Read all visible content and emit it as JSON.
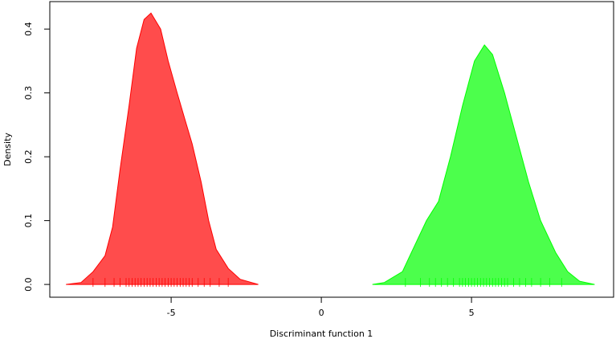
{
  "chart_data": {
    "type": "density",
    "xlabel": "Discriminant function 1",
    "ylabel": "Density",
    "xlim": [
      -9.04,
      9.73
    ],
    "ylim": [
      -0.02,
      0.443
    ],
    "xticks": [
      -5,
      0,
      5
    ],
    "yticks": [
      {
        "value": 0,
        "label": "0.0"
      },
      0.1,
      0.2,
      0.3,
      0.4
    ],
    "series": [
      {
        "color": "#ff0000",
        "x": [
          -8.5,
          -8.0,
          -7.6,
          -7.2,
          -6.95,
          -6.7,
          -6.4,
          -6.15,
          -5.9,
          -5.67,
          -5.35,
          -5.1,
          -4.8,
          -4.55,
          -4.3,
          -4.0,
          -3.75,
          -3.5,
          -3.1,
          -2.7,
          -2.1
        ],
        "values": [
          0,
          0.003,
          0.02,
          0.045,
          0.09,
          0.18,
          0.28,
          0.37,
          0.415,
          0.425,
          0.4,
          0.35,
          0.3,
          0.26,
          0.22,
          0.16,
          0.1,
          0.055,
          0.025,
          0.008,
          0
        ],
        "rug": [
          -7.6,
          -7.2,
          -6.9,
          -6.7,
          -6.5,
          -6.4,
          -6.3,
          -6.2,
          -6.1,
          -6.0,
          -5.9,
          -5.8,
          -5.7,
          -5.6,
          -5.5,
          -5.4,
          -5.3,
          -5.2,
          -5.1,
          -5.0,
          -4.9,
          -4.8,
          -4.7,
          -4.6,
          -4.5,
          -4.4,
          -4.3,
          -4.1,
          -3.9,
          -3.7,
          -3.4,
          -3.1
        ]
      },
      {
        "color": "#00ff00",
        "x": [
          1.7,
          2.1,
          2.7,
          3.1,
          3.5,
          3.9,
          4.3,
          4.7,
          5.1,
          5.43,
          5.7,
          6.1,
          6.5,
          6.9,
          7.3,
          7.8,
          8.2,
          8.6,
          9.1
        ],
        "values": [
          0,
          0.003,
          0.02,
          0.06,
          0.1,
          0.13,
          0.2,
          0.28,
          0.35,
          0.375,
          0.36,
          0.3,
          0.23,
          0.16,
          0.1,
          0.05,
          0.02,
          0.005,
          0
        ],
        "rug": [
          2.8,
          3.3,
          3.6,
          3.8,
          4.0,
          4.2,
          4.4,
          4.6,
          4.7,
          4.8,
          4.9,
          5.0,
          5.1,
          5.2,
          5.3,
          5.4,
          5.5,
          5.6,
          5.7,
          5.8,
          5.9,
          6.0,
          6.1,
          6.2,
          6.4,
          6.6,
          6.8,
          7.0,
          7.3,
          7.6,
          8.0
        ]
      }
    ]
  }
}
